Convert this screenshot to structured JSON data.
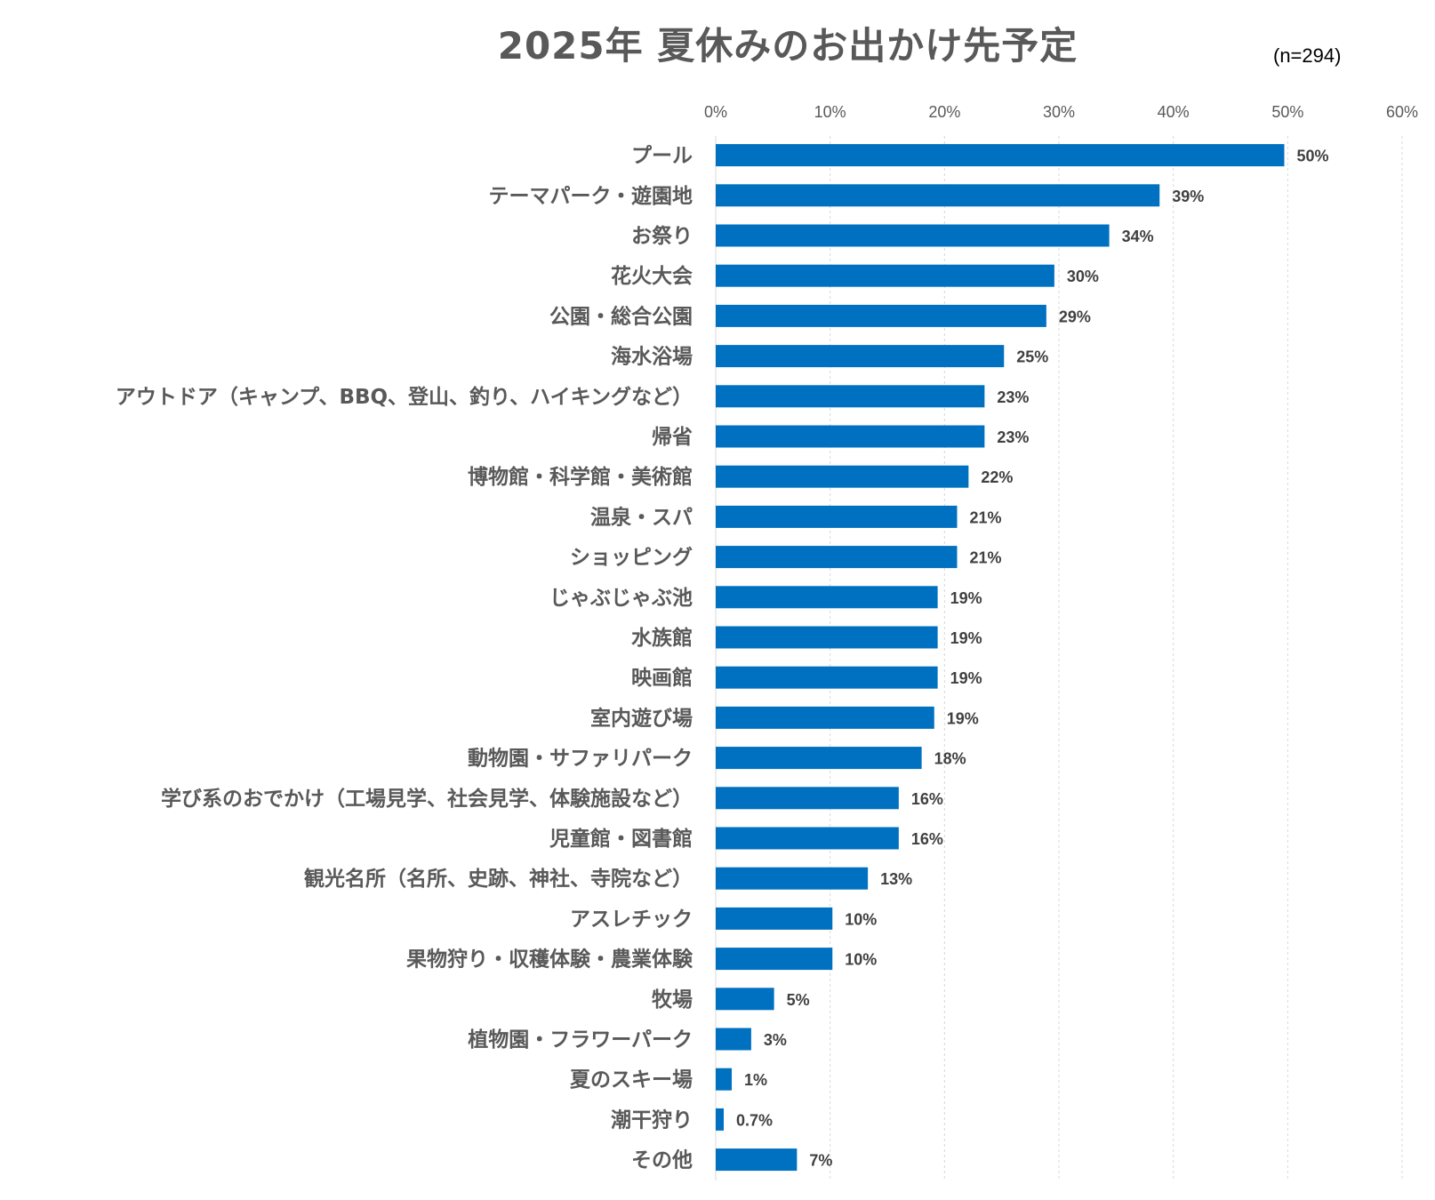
{
  "title": "2025年 夏休みのお出かけ先予定",
  "sample_note": "(n=294)",
  "colors": {
    "bar": "#0070C0",
    "grid": "#D9D9D9",
    "text": "#595959"
  },
  "chart_data": {
    "type": "bar",
    "orientation": "horizontal",
    "title": "2025年 夏休みのお出かけ先予定",
    "xlabel": "",
    "ylabel": "",
    "xlim": [
      0,
      60
    ],
    "x_ticks": [
      0,
      10,
      20,
      30,
      40,
      50,
      60
    ],
    "x_tick_labels": [
      "0%",
      "10%",
      "20%",
      "30%",
      "40%",
      "50%",
      "60%"
    ],
    "grid": true,
    "categories": [
      "プール",
      "テーマパーク・遊園地",
      "お祭り",
      "花火大会",
      "公園・総合公園",
      "海水浴場",
      "アウトドア（キャンプ、BBQ、登山、釣り、ハイキングなど）",
      "帰省",
      "博物館・科学館・美術館",
      "温泉・スパ",
      "ショッピング",
      "じゃぶじゃぶ池",
      "水族館",
      "映画館",
      "室内遊び場",
      "動物園・サファリパーク",
      "学び系のおでかけ（工場見学、社会見学、体験施設など）",
      "児童館・図書館",
      "観光名所（名所、史跡、神社、寺院など）",
      "アスレチック",
      "果物狩り・収穫体験・農業体験",
      "牧場",
      "植物園・フラワーパーク",
      "夏のスキー場",
      "潮干狩り",
      "その他"
    ],
    "values": [
      49.7,
      38.8,
      34.4,
      29.6,
      28.9,
      25.2,
      23.5,
      23.5,
      22.1,
      21.1,
      21.1,
      19.4,
      19.4,
      19.4,
      19.1,
      18.0,
      16.0,
      16.0,
      13.3,
      10.2,
      10.2,
      5.1,
      3.1,
      1.4,
      0.7,
      7.1
    ],
    "value_labels": [
      "50%",
      "39%",
      "34%",
      "30%",
      "29%",
      "25%",
      "23%",
      "23%",
      "22%",
      "21%",
      "21%",
      "19%",
      "19%",
      "19%",
      "19%",
      "18%",
      "16%",
      "16%",
      "13%",
      "10%",
      "10%",
      "5%",
      "3%",
      "1%",
      "0.7%",
      "7%"
    ]
  }
}
